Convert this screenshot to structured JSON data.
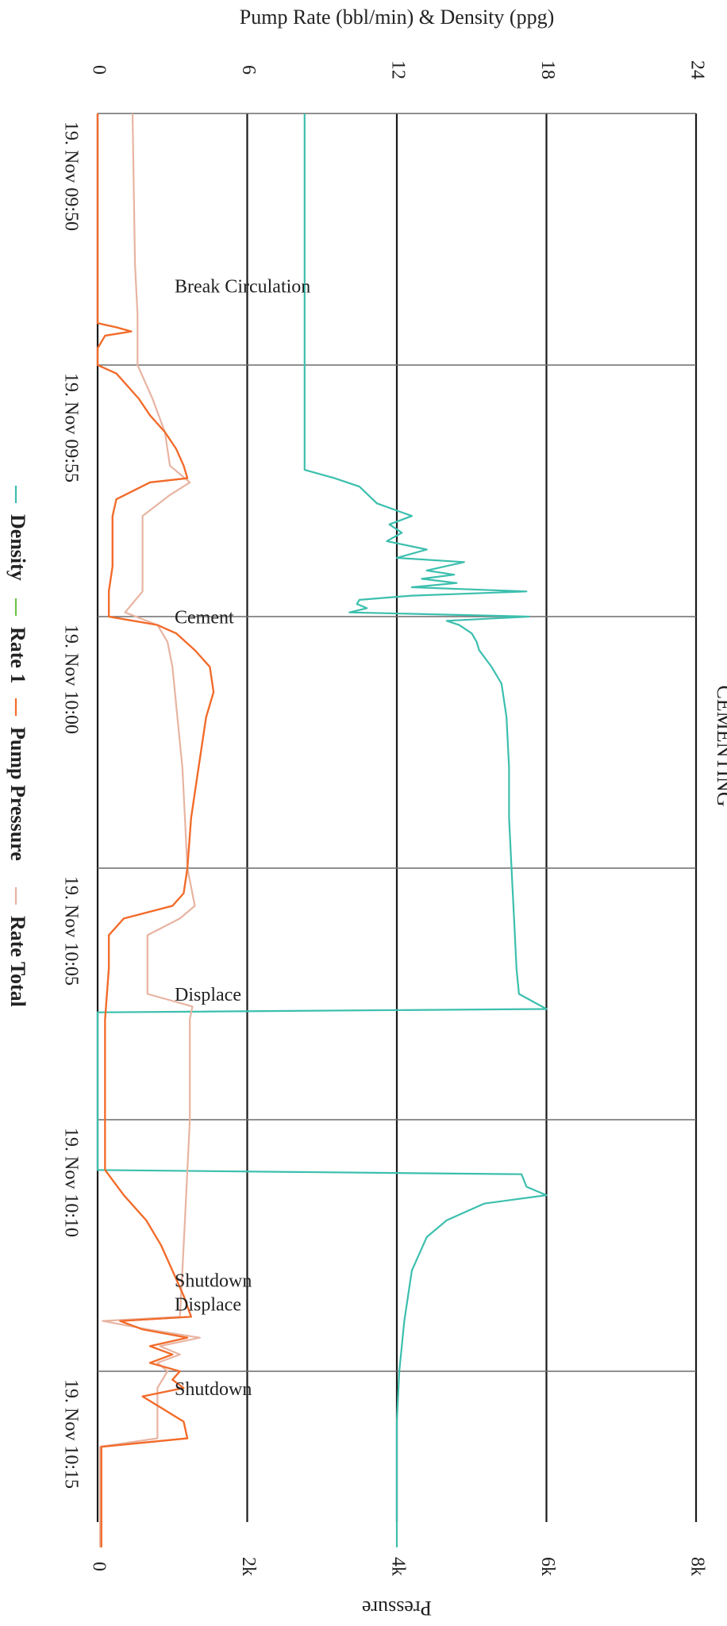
{
  "chart_data": {
    "type": "line",
    "orientation": "rotated-90-clockwise",
    "title": "CEMENTING",
    "left_axis_title": "Pump Rate (bbl/min) & Density (ppg)",
    "right_axis_title": "Pressure",
    "rate_density_axis": {
      "min": 0,
      "max": 24,
      "ticks": [
        0,
        6,
        12,
        18,
        24
      ]
    },
    "pressure_axis": {
      "min": 0,
      "max": 8000,
      "ticks": [
        0,
        2000,
        4000,
        6000,
        8000
      ],
      "tick_labels": [
        "0",
        "2k",
        "4k",
        "6k",
        "8k"
      ]
    },
    "time_axis": {
      "start": "09:50",
      "end": "10:18:30",
      "ticks": [
        "09:50",
        "09:55",
        "10:00",
        "10:05",
        "10:10",
        "10:15"
      ],
      "tick_labels": [
        "19. Nov 09:50",
        "19. Nov 09:55",
        "19. Nov 10:00",
        "19. Nov 10:05",
        "19. Nov 10:10",
        "19. Nov 10:15"
      ]
    },
    "grid": true,
    "legend_position": "bottom",
    "legend": [
      "Density",
      "Rate 1",
      "Pump Pressure",
      "Rate Total"
    ],
    "annotations": [
      {
        "time": "09:53:45",
        "label": "Break Circulation"
      },
      {
        "time": "10:00:20",
        "label": "Cement"
      },
      {
        "time": "10:07:50",
        "label": "Displace"
      },
      {
        "time": "10:13:50",
        "label": "Shutdown Displace"
      },
      {
        "time": "10:15:40",
        "label": "Shutdown"
      }
    ],
    "series": [
      {
        "name": "Density",
        "color": "#3cbfae",
        "axis": "rate_density",
        "points": [
          [
            "09:50",
            8.3
          ],
          [
            "09:57:05",
            8.3
          ],
          [
            "09:57:15",
            9.5
          ],
          [
            "09:57:25",
            10.5
          ],
          [
            "09:57:45",
            11.2
          ],
          [
            "09:58:00",
            12.6
          ],
          [
            "09:58:10",
            11.7
          ],
          [
            "09:58:20",
            12.2
          ],
          [
            "09:58:30",
            11.6
          ],
          [
            "09:58:40",
            13.2
          ],
          [
            "09:58:50",
            12.0
          ],
          [
            "09:58:55",
            14.7
          ],
          [
            "09:59:05",
            13.2
          ],
          [
            "09:59:10",
            14.3
          ],
          [
            "09:59:15",
            13.0
          ],
          [
            "09:59:20",
            14.4
          ],
          [
            "09:59:25",
            12.6
          ],
          [
            "09:59:30",
            17.2
          ],
          [
            "09:59:35",
            12.6
          ],
          [
            "09:59:40",
            10.5
          ],
          [
            "09:59:45",
            10.4
          ],
          [
            "09:59:50",
            10.8
          ],
          [
            "09:59:55",
            10.1
          ],
          [
            "10:00:00",
            17.3
          ],
          [
            "10:00:05",
            14.0
          ],
          [
            "10:00:10",
            14.5
          ],
          [
            "10:00:20",
            15.0
          ],
          [
            "10:00:30",
            15.2
          ],
          [
            "10:00:40",
            15.3
          ],
          [
            "10:01:00",
            15.8
          ],
          [
            "10:01:20",
            16.2
          ],
          [
            "10:02:00",
            16.4
          ],
          [
            "10:03:00",
            16.5
          ],
          [
            "10:04:00",
            16.5
          ],
          [
            "10:05:00",
            16.6
          ],
          [
            "10:06:00",
            16.7
          ],
          [
            "10:07:00",
            16.8
          ],
          [
            "10:07:30",
            16.9
          ],
          [
            "10:07:48",
            18.0
          ],
          [
            "10:07:52",
            0.0
          ],
          [
            "10:11:00",
            0.0
          ],
          [
            "10:11:05",
            17.0
          ],
          [
            "10:11:20",
            17.2
          ],
          [
            "10:11:30",
            18.0
          ],
          [
            "10:11:40",
            15.5
          ],
          [
            "10:12:00",
            14.0
          ],
          [
            "10:12:20",
            13.2
          ],
          [
            "10:13:00",
            12.6
          ],
          [
            "10:14:00",
            12.3
          ],
          [
            "10:15:00",
            12.1
          ],
          [
            "10:16:00",
            12.0
          ],
          [
            "10:17:00",
            12.0
          ],
          [
            "10:18:30",
            12.0
          ]
        ]
      },
      {
        "name": "Pump Pressure",
        "color": "#f26b2a",
        "axis": "pressure",
        "points": [
          [
            "09:50",
            0
          ],
          [
            "09:54:10",
            0
          ],
          [
            "09:54:15",
            250
          ],
          [
            "09:54:20",
            450
          ],
          [
            "09:54:25",
            100
          ],
          [
            "09:54:40",
            0
          ],
          [
            "09:55:00",
            0
          ],
          [
            "09:55:10",
            250
          ],
          [
            "09:55:20",
            350
          ],
          [
            "09:55:40",
            550
          ],
          [
            "09:56:00",
            700
          ],
          [
            "09:56:20",
            900
          ],
          [
            "09:56:40",
            1050
          ],
          [
            "09:57:00",
            1150
          ],
          [
            "09:57:15",
            1200
          ],
          [
            "09:57:20",
            700
          ],
          [
            "09:57:40",
            250
          ],
          [
            "09:58:00",
            200
          ],
          [
            "09:59:00",
            200
          ],
          [
            "09:59:30",
            150
          ],
          [
            "10:00:00",
            150
          ],
          [
            "10:00:10",
            800
          ],
          [
            "10:00:20",
            1050
          ],
          [
            "10:00:40",
            1300
          ],
          [
            "10:01:00",
            1500
          ],
          [
            "10:01:30",
            1550
          ],
          [
            "10:02:00",
            1450
          ],
          [
            "10:03:00",
            1350
          ],
          [
            "10:04:00",
            1250
          ],
          [
            "10:05:00",
            1200
          ],
          [
            "10:05:30",
            1150
          ],
          [
            "10:05:45",
            1000
          ],
          [
            "10:06:00",
            350
          ],
          [
            "10:06:20",
            150
          ],
          [
            "10:07:00",
            150
          ],
          [
            "10:08:00",
            100
          ],
          [
            "10:09:00",
            100
          ],
          [
            "10:10:00",
            100
          ],
          [
            "10:11:00",
            100
          ],
          [
            "10:11:30",
            350
          ],
          [
            "10:12:00",
            650
          ],
          [
            "10:12:30",
            850
          ],
          [
            "10:13:00",
            1000
          ],
          [
            "10:13:30",
            1150
          ],
          [
            "10:13:55",
            1250
          ],
          [
            "10:14:00",
            300
          ],
          [
            "10:14:10",
            600
          ],
          [
            "10:14:20",
            1200
          ],
          [
            "10:14:30",
            700
          ],
          [
            "10:14:40",
            1000
          ],
          [
            "10:14:50",
            700
          ],
          [
            "10:15:00",
            1100
          ],
          [
            "10:15:10",
            1000
          ],
          [
            "10:15:20",
            1150
          ],
          [
            "10:15:30",
            600
          ],
          [
            "10:16:00",
            1150
          ],
          [
            "10:16:20",
            1200
          ],
          [
            "10:16:30",
            50
          ],
          [
            "10:18:30",
            50
          ]
        ]
      },
      {
        "name": "Rate Total",
        "color": "#e8b4a2",
        "axis": "rate_density",
        "points": [
          [
            "09:50",
            1.4
          ],
          [
            "09:53:00",
            1.5
          ],
          [
            "09:54:00",
            1.6
          ],
          [
            "09:54:30",
            1.6
          ],
          [
            "09:55:00",
            1.6
          ],
          [
            "09:55:40",
            2.2
          ],
          [
            "09:56:20",
            2.7
          ],
          [
            "09:57:00",
            2.9
          ],
          [
            "09:57:20",
            3.7
          ],
          [
            "09:57:35",
            2.9
          ],
          [
            "09:58:00",
            1.8
          ],
          [
            "09:59:00",
            1.8
          ],
          [
            "09:59:30",
            1.8
          ],
          [
            "09:59:55",
            1.1
          ],
          [
            "10:00:10",
            2.4
          ],
          [
            "10:00:30",
            2.8
          ],
          [
            "10:01:00",
            3.0
          ],
          [
            "10:02:00",
            3.2
          ],
          [
            "10:03:00",
            3.4
          ],
          [
            "10:04:00",
            3.5
          ],
          [
            "10:05:00",
            3.6
          ],
          [
            "10:05:45",
            3.9
          ],
          [
            "10:06:00",
            3.3
          ],
          [
            "10:06:20",
            2.0
          ],
          [
            "10:07:30",
            2.0
          ],
          [
            "10:07:45",
            3.8
          ],
          [
            "10:08:00",
            3.7
          ],
          [
            "10:09:00",
            3.7
          ],
          [
            "10:10:00",
            3.7
          ],
          [
            "10:11:00",
            3.6
          ],
          [
            "10:12:00",
            3.5
          ],
          [
            "10:13:00",
            3.4
          ],
          [
            "10:13:55",
            3.3
          ],
          [
            "10:14:00",
            0.2
          ],
          [
            "10:14:10",
            2.0
          ],
          [
            "10:14:20",
            4.1
          ],
          [
            "10:14:30",
            2.5
          ],
          [
            "10:14:40",
            3.3
          ],
          [
            "10:14:50",
            2.4
          ],
          [
            "10:15:00",
            2.8
          ],
          [
            "10:15:20",
            2.4
          ],
          [
            "10:16:00",
            2.4
          ],
          [
            "10:16:20",
            2.4
          ],
          [
            "10:16:30",
            0.1
          ],
          [
            "10:18:30",
            0.1
          ]
        ]
      },
      {
        "name": "Rate 1",
        "color": "#6cc24a",
        "axis": "rate_density",
        "points": [
          [
            "09:50",
            0
          ],
          [
            "10:18:30",
            0
          ]
        ]
      }
    ]
  }
}
